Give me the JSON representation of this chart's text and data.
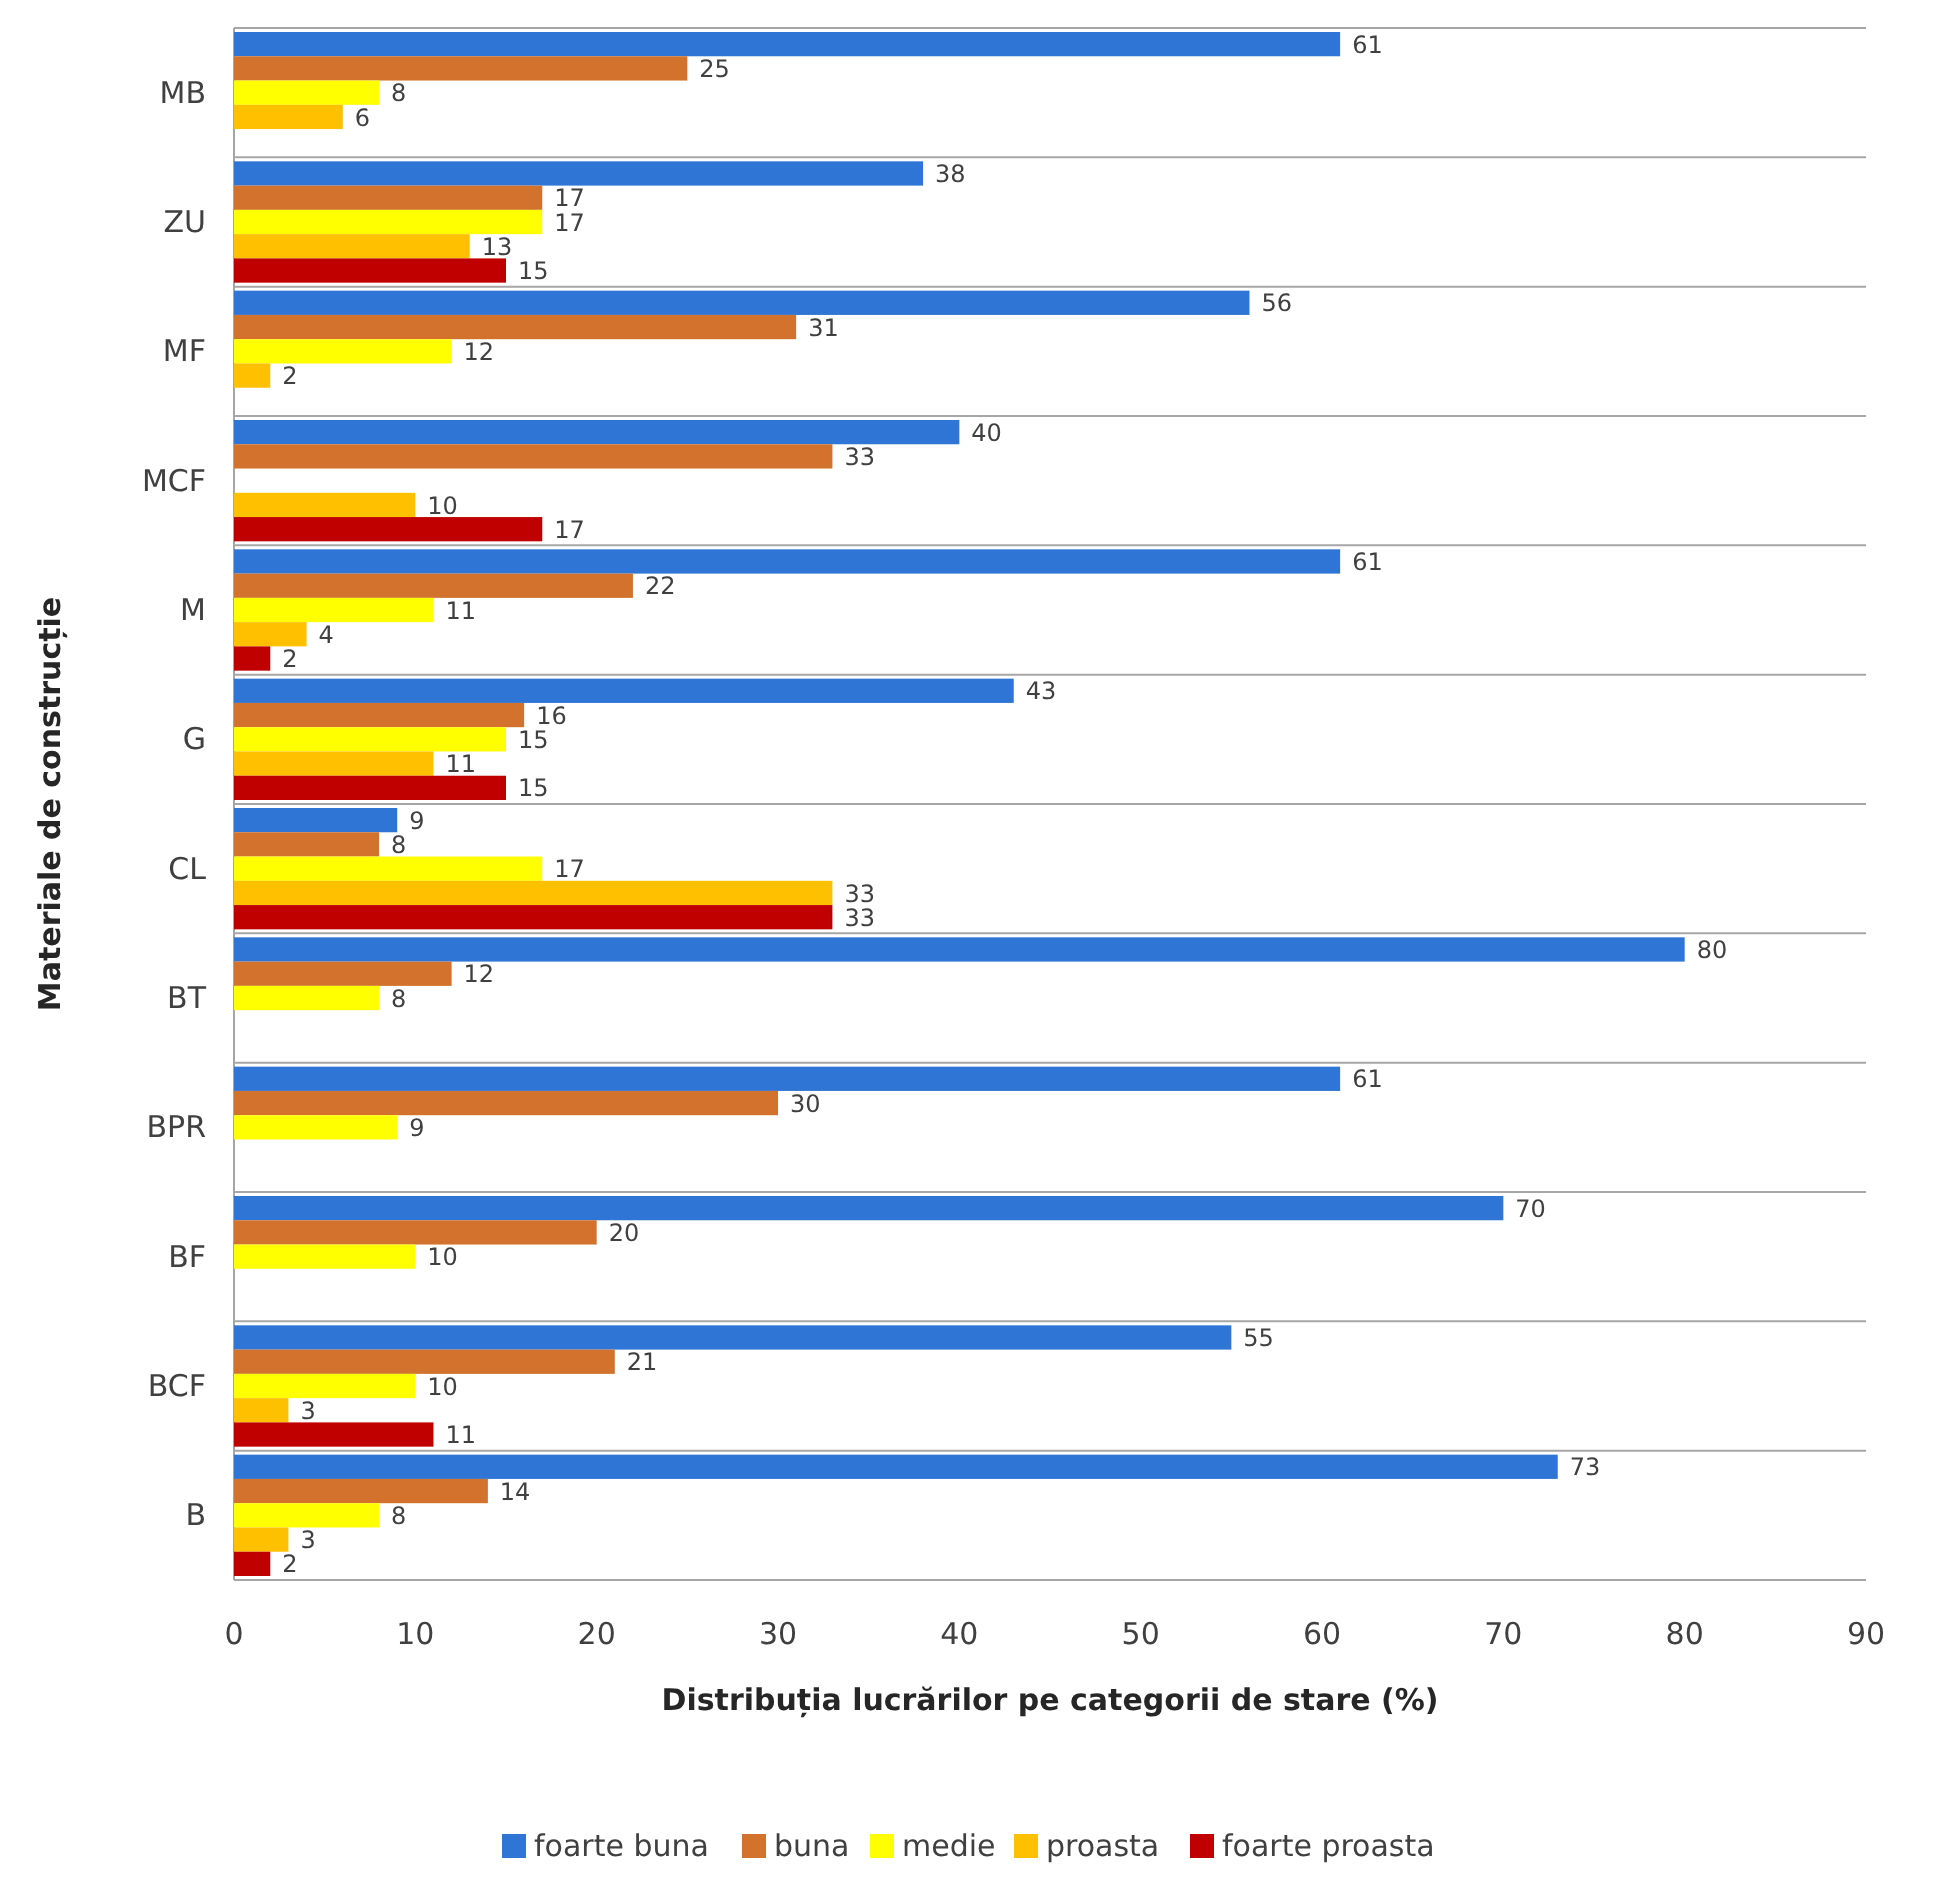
{
  "chart_data": {
    "type": "bar",
    "orientation": "horizontal",
    "xlabel": "Distribuția lucrărilor pe categorii de stare (%)",
    "ylabel": "Materiale de construcție",
    "categories": [
      "MB",
      "ZU",
      "MF",
      "MCF",
      "M",
      "G",
      "CL",
      "BT",
      "BPR",
      "BF",
      "BCF",
      "B"
    ],
    "series": [
      {
        "name": "foarte buna",
        "color": "#2e75d6",
        "values": [
          61,
          38,
          56,
          40,
          61,
          43,
          9,
          80,
          61,
          70,
          55,
          73
        ]
      },
      {
        "name": "buna",
        "color": "#d2722c",
        "values": [
          25,
          17,
          31,
          33,
          22,
          16,
          8,
          12,
          30,
          20,
          21,
          14
        ]
      },
      {
        "name": "medie",
        "color": "#ffff00",
        "values": [
          8,
          17,
          12,
          null,
          11,
          15,
          17,
          8,
          9,
          10,
          10,
          8
        ]
      },
      {
        "name": "proasta",
        "color": "#ffc000",
        "values": [
          6,
          13,
          2,
          10,
          4,
          11,
          33,
          null,
          null,
          null,
          3,
          3
        ]
      },
      {
        "name": "foarte proasta",
        "color": "#c00000",
        "values": [
          null,
          15,
          null,
          17,
          2,
          15,
          33,
          null,
          null,
          null,
          11,
          2
        ]
      }
    ],
    "xlim": [
      0,
      90
    ],
    "xticks": [
      0,
      10,
      20,
      30,
      40,
      50,
      60,
      70,
      80,
      90
    ],
    "grid": "y",
    "legend": "bottom",
    "data_labels": true
  }
}
